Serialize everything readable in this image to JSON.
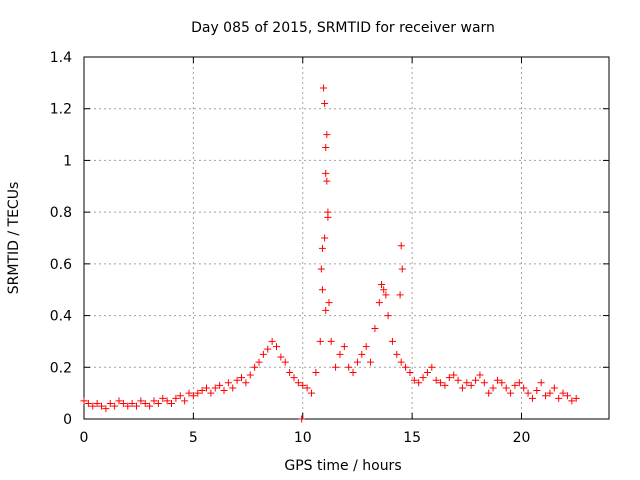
{
  "chart_data": {
    "type": "scatter",
    "title": "Day 085 of 2015, SRMTID for receiver warn",
    "xlabel": "GPS time / hours",
    "ylabel": "SRMTID / TECUs",
    "xlim": [
      0,
      24
    ],
    "ylim": [
      0,
      1.4
    ],
    "xticks": [
      0,
      5,
      10,
      15,
      20
    ],
    "xtick_labels": [
      "0",
      "5",
      "10",
      "15",
      "20"
    ],
    "yticks": [
      0,
      0.2,
      0.4,
      0.6,
      0.8,
      1.0,
      1.2,
      1.4
    ],
    "ytick_labels": [
      "0",
      "0.2",
      "0.4",
      "0.6",
      "0.8",
      "1",
      "1.2",
      "1.4"
    ],
    "grid": true,
    "marker": "+",
    "series": [
      {
        "name": "SRMTID",
        "color": "#ff0000",
        "x": [
          0.0,
          0.2,
          0.4,
          0.6,
          0.8,
          1.0,
          1.2,
          1.4,
          1.6,
          1.8,
          2.0,
          2.2,
          2.4,
          2.6,
          2.8,
          3.0,
          3.2,
          3.4,
          3.6,
          3.8,
          4.0,
          4.2,
          4.4,
          4.6,
          4.8,
          5.0,
          5.2,
          5.4,
          5.6,
          5.8,
          6.0,
          6.2,
          6.4,
          6.6,
          6.8,
          7.0,
          7.2,
          7.4,
          7.6,
          7.8,
          8.0,
          8.2,
          8.4,
          8.6,
          8.8,
          9.0,
          9.2,
          9.4,
          9.6,
          9.8,
          10.0,
          10.2,
          10.4,
          10.6,
          10.8,
          10.9,
          11.0,
          11.05,
          11.1,
          11.15,
          11.2,
          11.3,
          11.5,
          11.7,
          11.9,
          12.1,
          12.3,
          12.5,
          12.7,
          12.9,
          13.1,
          13.3,
          13.5,
          13.7,
          13.9,
          14.1,
          14.3,
          14.5,
          14.7,
          14.9,
          15.1,
          15.3,
          15.5,
          15.7,
          15.9,
          16.1,
          16.3,
          16.5,
          16.7,
          16.9,
          17.1,
          17.3,
          17.5,
          17.7,
          17.9,
          18.1,
          18.3,
          18.5,
          18.7,
          18.9,
          19.1,
          19.3,
          19.5,
          19.7,
          19.9,
          20.1,
          20.3,
          20.5,
          20.7,
          20.9,
          21.1,
          21.3,
          21.5,
          21.7,
          21.9,
          22.1,
          22.3,
          22.5,
          10.95,
          11.0,
          11.05,
          11.1,
          11.15,
          10.9,
          10.85,
          11.05,
          13.6,
          13.8,
          14.5,
          14.55,
          14.45,
          9.95
        ],
        "y": [
          0.07,
          0.06,
          0.05,
          0.06,
          0.05,
          0.04,
          0.06,
          0.05,
          0.07,
          0.06,
          0.05,
          0.06,
          0.05,
          0.07,
          0.06,
          0.05,
          0.07,
          0.06,
          0.08,
          0.07,
          0.06,
          0.08,
          0.09,
          0.07,
          0.1,
          0.09,
          0.1,
          0.11,
          0.12,
          0.1,
          0.12,
          0.13,
          0.11,
          0.14,
          0.12,
          0.15,
          0.16,
          0.14,
          0.17,
          0.2,
          0.22,
          0.25,
          0.27,
          0.3,
          0.28,
          0.24,
          0.22,
          0.18,
          0.16,
          0.14,
          0.13,
          0.12,
          0.1,
          0.18,
          0.3,
          0.5,
          0.7,
          0.95,
          1.1,
          0.8,
          0.45,
          0.3,
          0.2,
          0.25,
          0.28,
          0.2,
          0.18,
          0.22,
          0.25,
          0.28,
          0.22,
          0.35,
          0.45,
          0.5,
          0.4,
          0.3,
          0.25,
          0.22,
          0.2,
          0.18,
          0.15,
          0.14,
          0.16,
          0.18,
          0.2,
          0.15,
          0.14,
          0.13,
          0.16,
          0.17,
          0.15,
          0.12,
          0.14,
          0.13,
          0.15,
          0.17,
          0.14,
          0.1,
          0.12,
          0.15,
          0.14,
          0.12,
          0.1,
          0.13,
          0.14,
          0.12,
          0.1,
          0.08,
          0.11,
          0.14,
          0.09,
          0.1,
          0.12,
          0.08,
          0.1,
          0.09,
          0.07,
          0.08,
          1.28,
          1.22,
          1.05,
          0.92,
          0.78,
          0.66,
          0.58,
          0.42,
          0.52,
          0.48,
          0.67,
          0.58,
          0.48,
          0.0
        ]
      }
    ]
  }
}
